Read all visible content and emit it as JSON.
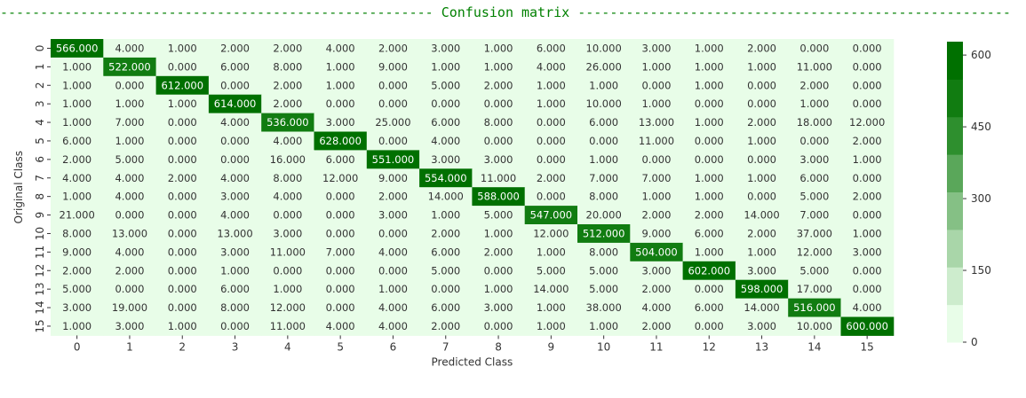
{
  "banner": {
    "title": "Confusion matrix",
    "dash_char": "-"
  },
  "chart_data": {
    "type": "heatmap",
    "title": "Confusion matrix",
    "xlabel": "Predicted Class",
    "ylabel": "Original Class",
    "x_categories": [
      "0",
      "1",
      "2",
      "3",
      "4",
      "5",
      "6",
      "7",
      "8",
      "9",
      "10",
      "11",
      "12",
      "13",
      "14",
      "15"
    ],
    "y_categories": [
      "0",
      "1",
      "2",
      "3",
      "4",
      "5",
      "6",
      "7",
      "8",
      "9",
      "10",
      "11",
      "12",
      "13",
      "14",
      "15"
    ],
    "value_format": "3 decimals",
    "values": [
      [
        566,
        4,
        1,
        2,
        2,
        4,
        2,
        3,
        1,
        6,
        10,
        3,
        1,
        2,
        0,
        0
      ],
      [
        1,
        522,
        0,
        6,
        8,
        1,
        9,
        1,
        1,
        4,
        26,
        1,
        1,
        1,
        11,
        0
      ],
      [
        1,
        0,
        612,
        0,
        2,
        1,
        0,
        5,
        2,
        1,
        1,
        0,
        1,
        0,
        2,
        0
      ],
      [
        1,
        1,
        1,
        614,
        2,
        0,
        0,
        0,
        0,
        1,
        10,
        1,
        0,
        0,
        1,
        0
      ],
      [
        1,
        7,
        0,
        4,
        536,
        3,
        25,
        6,
        8,
        0,
        6,
        13,
        1,
        2,
        18,
        12
      ],
      [
        6,
        1,
        0,
        0,
        4,
        628,
        0,
        4,
        0,
        0,
        0,
        11,
        0,
        1,
        0,
        2
      ],
      [
        2,
        5,
        0,
        0,
        16,
        6,
        551,
        3,
        3,
        0,
        1,
        0,
        0,
        0,
        3,
        1
      ],
      [
        4,
        4,
        2,
        4,
        8,
        12,
        9,
        554,
        11,
        2,
        7,
        7,
        1,
        1,
        6,
        0
      ],
      [
        1,
        4,
        0,
        3,
        4,
        0,
        2,
        14,
        588,
        0,
        8,
        1,
        1,
        0,
        5,
        2
      ],
      [
        21,
        0,
        0,
        4,
        0,
        0,
        3,
        1,
        5,
        547,
        20,
        2,
        2,
        14,
        7,
        0
      ],
      [
        8,
        13,
        0,
        13,
        3,
        0,
        0,
        2,
        1,
        12,
        512,
        9,
        6,
        2,
        37,
        1
      ],
      [
        9,
        4,
        0,
        3,
        11,
        7,
        4,
        6,
        2,
        1,
        8,
        504,
        1,
        1,
        12,
        3
      ],
      [
        2,
        2,
        0,
        1,
        0,
        0,
        0,
        5,
        0,
        5,
        5,
        3,
        602,
        3,
        5,
        0
      ],
      [
        5,
        0,
        0,
        6,
        1,
        0,
        1,
        0,
        1,
        14,
        5,
        2,
        0,
        598,
        17,
        0
      ],
      [
        3,
        19,
        0,
        8,
        12,
        0,
        4,
        6,
        3,
        1,
        38,
        4,
        6,
        14,
        516,
        4
      ],
      [
        1,
        3,
        1,
        0,
        11,
        4,
        4,
        2,
        0,
        1,
        1,
        2,
        0,
        3,
        10,
        600
      ]
    ],
    "colorbar": {
      "ticks": [
        0,
        150,
        300,
        450,
        600
      ],
      "range": [
        0,
        628
      ],
      "colors": [
        "#e8fde8",
        "#cdeccd",
        "#a9d6a9",
        "#85c085",
        "#5aa75a",
        "#2e8f2e",
        "#117c11",
        "#007000"
      ]
    },
    "colorbar_tick_labels": [
      "0",
      "150",
      "300",
      "450",
      "600"
    ],
    "text_light_color": "#ffffff",
    "text_dark_color": "#333333",
    "grid": false,
    "legend": "colorbar-right"
  }
}
